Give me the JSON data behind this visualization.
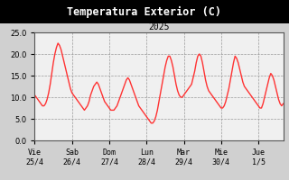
{
  "title": "Temperatura Exterior (C)",
  "subtitle": "2025",
  "fig_bg_color": "#d0d0d0",
  "title_bg_color": "#000000",
  "plot_bg_color": "#f0f0f0",
  "line_color": "#ff3333",
  "title_color": "#ffffff",
  "subtitle_color": "#000000",
  "ylim": [
    0.0,
    25.0
  ],
  "yticks": [
    0.0,
    5.0,
    10.0,
    15.0,
    20.0,
    25.0
  ],
  "xtick_labels": [
    "Vie\n25/4",
    "Sab\n26/4",
    "Dom\n27/4",
    "Lun\n28/4",
    "Mar\n29/4",
    "Mie\n30/4",
    "Jue\n1/5"
  ],
  "x": [
    0,
    1,
    2,
    3,
    4,
    5,
    6,
    7,
    8,
    9,
    10,
    11,
    12,
    13,
    14,
    15,
    16,
    17,
    18,
    19,
    20,
    21,
    22,
    23,
    24,
    25,
    26,
    27,
    28,
    29,
    30,
    31,
    32,
    33,
    34,
    35,
    36,
    37,
    38,
    39,
    40,
    41,
    42,
    43,
    44,
    45,
    46,
    47,
    48,
    49,
    50,
    51,
    52,
    53,
    54,
    55,
    56,
    57,
    58,
    59,
    60,
    61,
    62,
    63,
    64,
    65,
    66,
    67,
    68,
    69,
    70,
    71,
    72,
    73,
    74,
    75,
    76,
    77,
    78,
    79,
    80,
    81,
    82,
    83,
    84,
    85,
    86,
    87,
    88,
    89,
    90,
    91,
    92,
    93,
    94,
    95,
    96,
    97,
    98,
    99,
    100,
    101,
    102,
    103,
    104,
    105,
    106,
    107,
    108,
    109,
    110,
    111,
    112,
    113,
    114,
    115,
    116,
    117,
    118,
    119,
    120,
    121,
    122,
    123,
    124,
    125,
    126,
    127,
    128,
    129,
    130,
    131,
    132,
    133,
    134,
    135,
    136,
    137,
    138,
    139,
    140,
    141,
    142,
    143,
    144,
    145,
    146,
    147,
    148,
    149,
    150,
    151,
    152,
    153,
    154,
    155,
    156,
    157,
    158,
    159,
    160
  ],
  "y": [
    10.5,
    10.0,
    9.5,
    9.0,
    8.5,
    8.0,
    8.0,
    8.5,
    9.5,
    11.0,
    13.0,
    15.5,
    18.0,
    20.0,
    21.5,
    22.5,
    22.0,
    21.0,
    19.5,
    18.0,
    16.5,
    15.0,
    13.5,
    12.0,
    11.0,
    10.5,
    10.0,
    9.5,
    9.0,
    8.5,
    8.0,
    7.5,
    7.0,
    7.5,
    8.0,
    9.0,
    10.5,
    11.5,
    12.5,
    13.0,
    13.5,
    13.0,
    12.0,
    11.0,
    10.0,
    9.0,
    8.5,
    8.0,
    7.5,
    7.0,
    7.0,
    7.0,
    7.5,
    8.0,
    9.0,
    10.0,
    11.0,
    12.0,
    13.0,
    14.0,
    14.5,
    14.0,
    13.0,
    12.0,
    11.0,
    10.0,
    9.0,
    8.0,
    7.5,
    7.0,
    6.5,
    6.0,
    5.5,
    5.0,
    4.5,
    4.0,
    4.0,
    4.5,
    5.5,
    7.0,
    9.0,
    11.0,
    13.0,
    15.0,
    17.0,
    18.5,
    19.5,
    19.5,
    18.5,
    17.0,
    15.0,
    13.0,
    11.5,
    10.5,
    10.0,
    10.0,
    10.5,
    11.0,
    11.5,
    12.0,
    12.5,
    13.0,
    14.5,
    16.0,
    18.0,
    19.5,
    20.0,
    19.5,
    18.0,
    16.0,
    14.0,
    12.5,
    11.5,
    11.0,
    10.5,
    10.0,
    9.5,
    9.0,
    8.5,
    8.0,
    7.5,
    7.5,
    8.0,
    9.0,
    10.5,
    12.0,
    14.0,
    16.0,
    18.0,
    19.5,
    19.0,
    18.0,
    16.5,
    15.0,
    13.5,
    12.5,
    12.0,
    11.5,
    11.0,
    10.5,
    10.0,
    9.5,
    9.0,
    8.5,
    8.0,
    7.5,
    7.5,
    8.5,
    10.0,
    11.5,
    13.0,
    14.5,
    15.5,
    15.0,
    14.0,
    12.5,
    11.0,
    9.5,
    8.5,
    8.0,
    8.5
  ],
  "grid_color": "#999999",
  "line_width": 1.0
}
